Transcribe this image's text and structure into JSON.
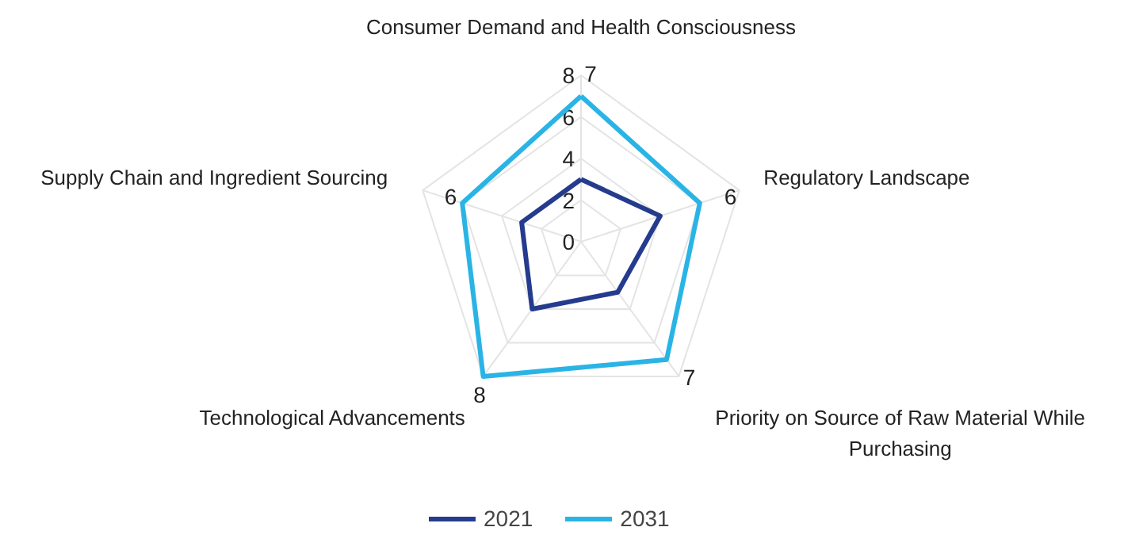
{
  "chart_data": {
    "type": "radar",
    "categories": [
      "Consumer Demand and Health Consciousness",
      "Regulatory Landscape",
      "Priority on Source of Raw Material While Purchasing",
      "Technological Advancements",
      "Supply Chain and Ingredient Sourcing"
    ],
    "series": [
      {
        "name": "2021",
        "color": "#253b8e",
        "values": [
          3,
          4,
          3,
          4,
          3
        ]
      },
      {
        "name": "2031",
        "color": "#2ab4e6",
        "values": [
          7,
          6,
          7,
          8,
          6
        ],
        "value_labels": [
          "7",
          "6",
          "7",
          "8",
          "6"
        ]
      }
    ],
    "ylim": [
      0,
      8
    ],
    "yticks": [
      0,
      2,
      4,
      6,
      8
    ],
    "grid": true,
    "legend": "bottom",
    "marker": "none",
    "line_style": "solid"
  }
}
